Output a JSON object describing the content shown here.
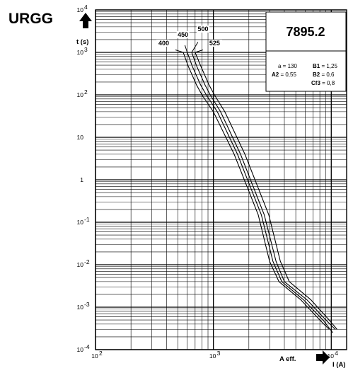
{
  "chart_data": {
    "type": "line",
    "brand": "URGG",
    "code": "7895.2",
    "x_scale": "log",
    "y_scale": "log",
    "xlim": [
      100,
      13500
    ],
    "ylim": [
      0.0001,
      10000
    ],
    "grid": true,
    "ylabel": "t (s)",
    "xlabel": "I (A)",
    "xlabel_prefix": "A eff.",
    "x_ticks": [
      {
        "value": 100,
        "base": "10",
        "exp": "2"
      },
      {
        "value": 1000,
        "base": "10",
        "exp": "3"
      },
      {
        "value": 10000,
        "base": "10",
        "exp": "4"
      }
    ],
    "y_ticks": [
      {
        "value": 10000,
        "base": "10",
        "exp": "4"
      },
      {
        "value": 1000,
        "base": "10",
        "exp": "3"
      },
      {
        "value": 100,
        "base": "10",
        "exp": "2"
      },
      {
        "value": 10,
        "base": "10",
        "exp": ""
      },
      {
        "value": 1,
        "base": "1",
        "exp": ""
      },
      {
        "value": 0.1,
        "base": "10",
        "exp": "-1"
      },
      {
        "value": 0.01,
        "base": "10",
        "exp": "-2"
      },
      {
        "value": 0.001,
        "base": "10",
        "exp": "-3"
      },
      {
        "value": 0.0001,
        "base": "10",
        "exp": "-4"
      }
    ],
    "parameters": [
      {
        "name": "a",
        "value": "130",
        "bold_name": false
      },
      {
        "name": "B1",
        "value": "1,25",
        "bold_name": true
      },
      {
        "name": "A2",
        "value": "0,55",
        "bold_name": true
      },
      {
        "name": "B2",
        "value": "0,6",
        "bold_name": true
      },
      {
        "name": "Cf3",
        "value": "0,8",
        "bold_name": true
      }
    ],
    "series": [
      {
        "name": "400",
        "points": [
          [
            555,
            1000
          ],
          [
            610,
            480
          ],
          [
            720,
            170
          ],
          [
            800,
            100
          ],
          [
            1000,
            40
          ],
          [
            1500,
            4
          ],
          [
            2400,
            0.15
          ],
          [
            3000,
            0.012
          ],
          [
            3600,
            0.004
          ],
          [
            5500,
            0.0015
          ],
          [
            8000,
            0.0005
          ],
          [
            9600,
            0.0003
          ]
        ]
      },
      {
        "name": "450",
        "points": [
          [
            600,
            1000
          ],
          [
            660,
            480
          ],
          [
            780,
            170
          ],
          [
            870,
            100
          ],
          [
            1080,
            40
          ],
          [
            1600,
            4
          ],
          [
            2550,
            0.15
          ],
          [
            3200,
            0.012
          ],
          [
            3800,
            0.004
          ],
          [
            5800,
            0.0015
          ],
          [
            8500,
            0.0005
          ],
          [
            10300,
            0.00025
          ]
        ]
      },
      {
        "name": "500",
        "points": [
          [
            655,
            1000
          ],
          [
            720,
            480
          ],
          [
            850,
            170
          ],
          [
            940,
            100
          ],
          [
            1150,
            40
          ],
          [
            1700,
            4
          ],
          [
            2700,
            0.15
          ],
          [
            3400,
            0.012
          ],
          [
            4000,
            0.004
          ],
          [
            6200,
            0.0015
          ],
          [
            9000,
            0.0005
          ],
          [
            10800,
            0.0003
          ]
        ]
      },
      {
        "name": "525",
        "points": [
          [
            700,
            1000
          ],
          [
            780,
            480
          ],
          [
            920,
            170
          ],
          [
            1020,
            100
          ],
          [
            1250,
            40
          ],
          [
            1850,
            4
          ],
          [
            2950,
            0.15
          ],
          [
            3700,
            0.012
          ],
          [
            4400,
            0.004
          ],
          [
            6700,
            0.0015
          ],
          [
            9600,
            0.0005
          ],
          [
            11200,
            0.0003
          ]
        ]
      }
    ]
  }
}
